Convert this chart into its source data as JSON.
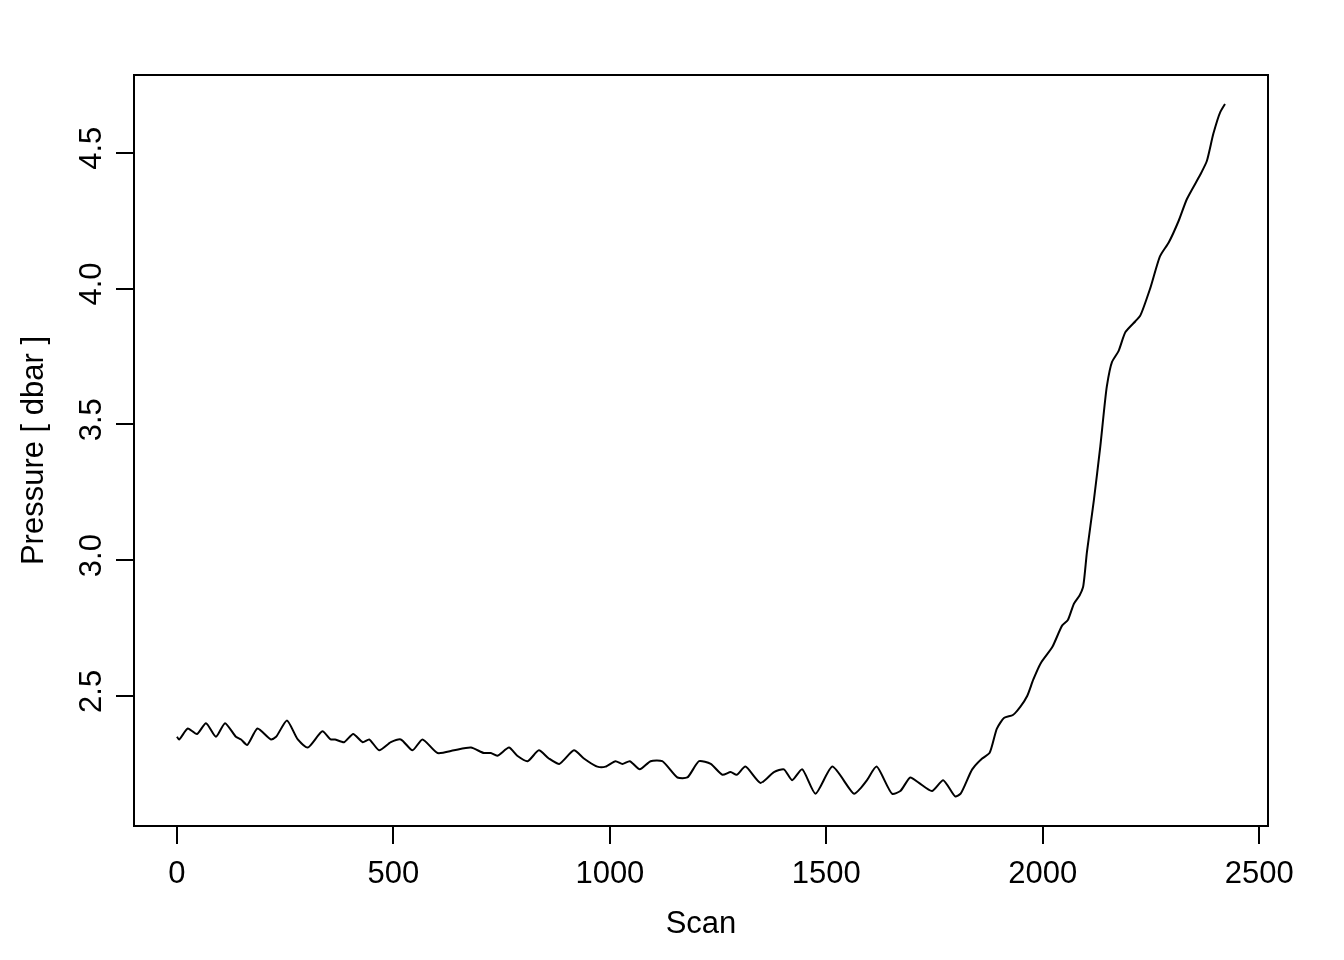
{
  "chart_data": {
    "type": "line",
    "xlabel": "Scan",
    "ylabel": "Pressure [ dbar ]",
    "color": "#000000",
    "line_style": "solid",
    "x": [
      0,
      5,
      25,
      46,
      67,
      90,
      111,
      136,
      148,
      162,
      186,
      217,
      229,
      254,
      279,
      302,
      336,
      355,
      365,
      386,
      407,
      429,
      444,
      467,
      494,
      517,
      544,
      567,
      602,
      640,
      679,
      709,
      725,
      740,
      767,
      786,
      810,
      836,
      859,
      883,
      917,
      940,
      971,
      990,
      1013,
      1029,
      1046,
      1069,
      1094,
      1121,
      1156,
      1179,
      1206,
      1233,
      1260,
      1279,
      1293,
      1313,
      1348,
      1379,
      1402,
      1421,
      1444,
      1475,
      1514,
      1564,
      1579,
      1594,
      1616,
      1652,
      1671,
      1694,
      1714,
      1744,
      1770,
      1798,
      1810,
      1837,
      1860,
      1877,
      1894,
      1911,
      1931,
      1948,
      1964,
      1978,
      1995,
      2022,
      2045,
      2058,
      2072,
      2085,
      2093,
      2102,
      2118,
      2133,
      2148,
      2160,
      2175,
      2191,
      2214,
      2225,
      2248,
      2271,
      2291,
      2314,
      2333,
      2364,
      2379,
      2394,
      2410,
      2421
    ],
    "values": [
      2.35,
      2.34,
      2.38,
      2.36,
      2.4,
      2.35,
      2.4,
      2.35,
      2.34,
      2.32,
      2.38,
      2.34,
      2.35,
      2.41,
      2.34,
      2.31,
      2.37,
      2.34,
      2.34,
      2.33,
      2.36,
      2.33,
      2.34,
      2.3,
      2.33,
      2.34,
      2.3,
      2.34,
      2.29,
      2.3,
      2.31,
      2.29,
      2.29,
      2.28,
      2.31,
      2.28,
      2.26,
      2.3,
      2.27,
      2.25,
      2.3,
      2.27,
      2.24,
      2.24,
      2.26,
      2.25,
      2.26,
      2.23,
      2.26,
      2.26,
      2.2,
      2.2,
      2.26,
      2.25,
      2.21,
      2.22,
      2.21,
      2.24,
      2.18,
      2.22,
      2.23,
      2.19,
      2.23,
      2.14,
      2.24,
      2.14,
      2.16,
      2.19,
      2.24,
      2.14,
      2.15,
      2.2,
      2.18,
      2.15,
      2.19,
      2.13,
      2.14,
      2.23,
      2.27,
      2.29,
      2.38,
      2.42,
      2.43,
      2.46,
      2.5,
      2.56,
      2.62,
      2.68,
      2.76,
      2.78,
      2.84,
      2.87,
      2.9,
      3.03,
      3.22,
      3.42,
      3.64,
      3.73,
      3.77,
      3.84,
      3.88,
      3.9,
      4.0,
      4.12,
      4.17,
      4.25,
      4.33,
      4.42,
      4.47,
      4.57,
      4.65,
      4.68
    ],
    "xlim": [
      -97,
      2518
    ],
    "ylim": [
      2.025,
      4.783
    ],
    "xticks": [
      0,
      500,
      1000,
      1500,
      2000,
      2500
    ],
    "yticks": [
      2.5,
      {
        "value": 3,
        "label": "3.0"
      },
      3.5,
      {
        "value": 4,
        "label": "4.0"
      },
      4.5
    ]
  }
}
